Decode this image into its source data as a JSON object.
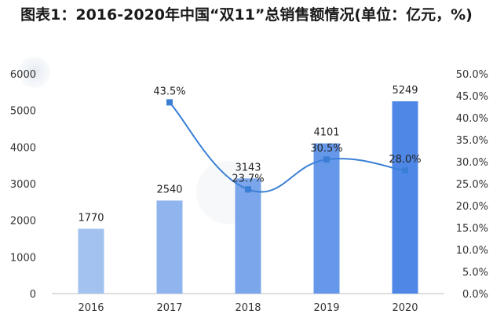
{
  "chart_data": {
    "type": "bar",
    "title": "图表1：2016-2020年中国“双11”总销售额情况(单位：亿元，%)",
    "categories": [
      "2016",
      "2017",
      "2018",
      "2019",
      "2020"
    ],
    "series": [
      {
        "type": "bar",
        "values": [
          1770,
          2540,
          3143,
          4101,
          5249
        ],
        "value_labels": [
          "1770",
          "2540",
          "3143",
          "4101",
          "5249"
        ],
        "axis": "left"
      },
      {
        "type": "line",
        "values": [
          null,
          43.5,
          23.7,
          30.5,
          28.0
        ],
        "value_labels": [
          "",
          "43.5%",
          "23.7%",
          "30.5%",
          "28.0%"
        ],
        "axis": "right",
        "smooth": true
      }
    ],
    "y_left": {
      "min": 0,
      "max": 6000,
      "step": 1000,
      "ticks": [
        "0",
        "1000",
        "2000",
        "3000",
        "4000",
        "5000",
        "6000"
      ]
    },
    "y_right": {
      "min": 0,
      "max": 50,
      "step": 5,
      "ticks": [
        "0.0%",
        "5.0%",
        "10.0%",
        "15.0%",
        "20.0%",
        "25.0%",
        "30.0%",
        "35.0%",
        "40.0%",
        "45.0%",
        "50.0%"
      ]
    },
    "grid": false,
    "legend": "none",
    "colors": {
      "bars": [
        "#a3c2f0",
        "#8fb4ee",
        "#7ba6ec",
        "#6698ea",
        "#4f87e6"
      ],
      "line": "#3a7fd5",
      "axis": "#bfbfbf"
    }
  }
}
